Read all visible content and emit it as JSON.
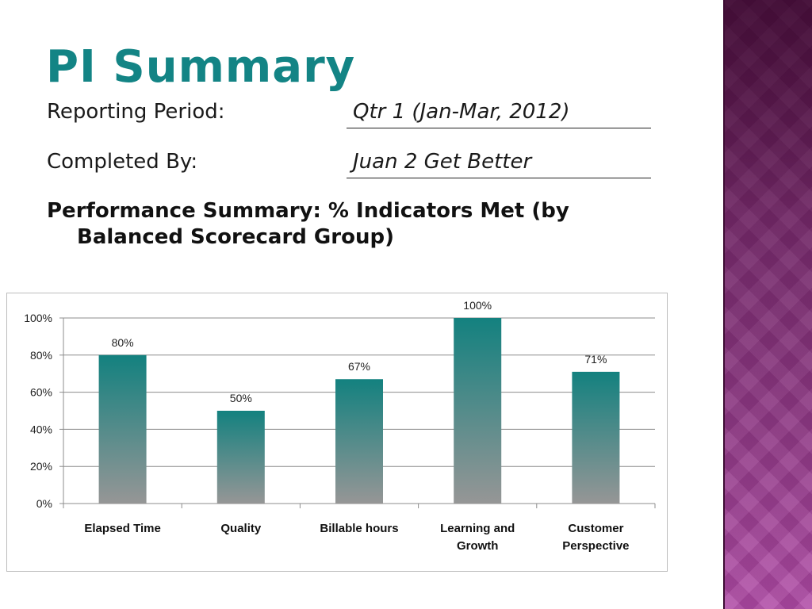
{
  "slide": {
    "title": "PI Summary",
    "reporting_period_label": "Reporting Period:",
    "reporting_period_value": "Qtr 1 (Jan-Mar, 2012)",
    "completed_by_label": "Completed By:",
    "completed_by_value": "Juan 2 Get Better",
    "performance_heading": "Performance Summary: % Indicators Met (by Balanced Scorecard Group)"
  },
  "colors": {
    "title": "#138485",
    "bar_top": "#13817f",
    "bar_bottom": "#969696",
    "side_band": "#7a2f6e"
  },
  "chart_data": {
    "type": "bar",
    "title": "",
    "xlabel": "",
    "ylabel": "",
    "categories": [
      [
        "Elapsed Time"
      ],
      [
        "Quality"
      ],
      [
        "Billable hours"
      ],
      [
        "Learning and",
        "Growth"
      ],
      [
        "Customer",
        "Perspective"
      ]
    ],
    "values": [
      80,
      50,
      67,
      100,
      71
    ],
    "data_labels": [
      "80%",
      "50%",
      "67%",
      "100%",
      "71%"
    ],
    "ylim": [
      0,
      100
    ],
    "yticks": [
      0,
      20,
      40,
      60,
      80,
      100
    ],
    "ytick_labels": [
      "0%",
      "20%",
      "40%",
      "60%",
      "80%",
      "100%"
    ],
    "grid": true,
    "legend": "none"
  }
}
